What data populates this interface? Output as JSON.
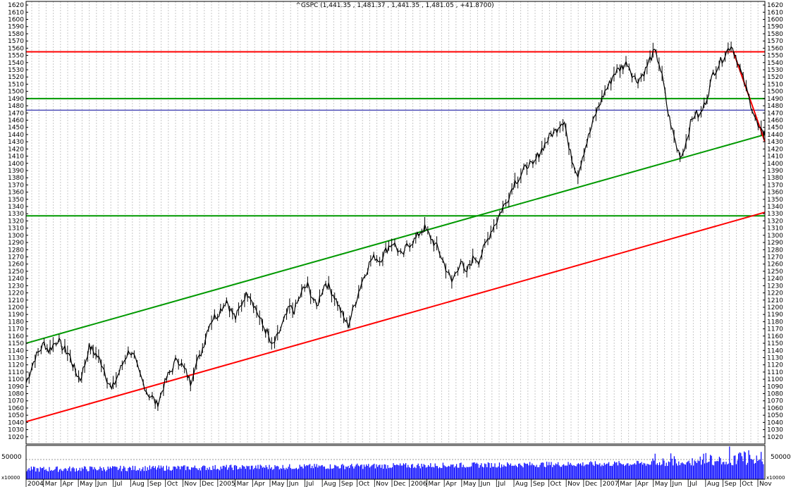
{
  "chart_data": {
    "type": "line",
    "title": "^GSPC (1,441.35 , 1,481.37 , 1,441.35 , 1,481.05 , +41.8700)",
    "ylim": [
      1010,
      1625
    ],
    "y_ticks": [
      1620,
      1610,
      1600,
      1590,
      1580,
      1570,
      1560,
      1550,
      1540,
      1530,
      1520,
      1510,
      1500,
      1490,
      1480,
      1470,
      1460,
      1450,
      1440,
      1430,
      1420,
      1410,
      1400,
      1390,
      1380,
      1370,
      1360,
      1350,
      1340,
      1330,
      1320,
      1310,
      1300,
      1290,
      1280,
      1270,
      1260,
      1250,
      1240,
      1230,
      1220,
      1210,
      1200,
      1190,
      1180,
      1170,
      1160,
      1150,
      1140,
      1130,
      1120,
      1110,
      1100,
      1090,
      1080,
      1070,
      1060,
      1050,
      1040,
      1030,
      1020
    ],
    "x_labels": [
      "2004",
      "Mar",
      "Apr",
      "May",
      "Jun",
      "Jul",
      "Aug",
      "Sep",
      "Oct",
      "Nov",
      "Dec",
      "2005",
      "Mar",
      "Apr",
      "May",
      "Jun",
      "Jul",
      "Aug",
      "Sep",
      "Oct",
      "Nov",
      "Dec",
      "2006",
      "Mar",
      "Apr",
      "May",
      "Jun",
      "Jul",
      "Aug",
      "Sep",
      "Oct",
      "Nov",
      "Dec",
      "2007",
      "Mar",
      "Apr",
      "May",
      "Jun",
      "Jul",
      "Aug",
      "Sep",
      "Oct",
      "Nov"
    ],
    "volume_label": "50000",
    "volume_scale_label": "x10000",
    "price_series": {
      "name": "^GSPC",
      "points": [
        [
          0,
          1095
        ],
        [
          4,
          1130
        ],
        [
          8,
          1150
        ],
        [
          10,
          1140
        ],
        [
          14,
          1155
        ],
        [
          16,
          1145
        ],
        [
          19,
          1135
        ],
        [
          22,
          1110
        ],
        [
          24,
          1100
        ],
        [
          26,
          1120
        ],
        [
          28,
          1145
        ],
        [
          31,
          1135
        ],
        [
          34,
          1120
        ],
        [
          36,
          1100
        ],
        [
          38,
          1085
        ],
        [
          40,
          1100
        ],
        [
          44,
          1130
        ],
        [
          46,
          1140
        ],
        [
          48,
          1130
        ],
        [
          50,
          1110
        ],
        [
          52,
          1095
        ],
        [
          54,
          1080
        ],
        [
          56,
          1075
        ],
        [
          58,
          1065
        ],
        [
          59,
          1070
        ],
        [
          61,
          1090
        ],
        [
          63,
          1105
        ],
        [
          65,
          1115
        ],
        [
          67,
          1130
        ],
        [
          69,
          1120
        ],
        [
          71,
          1110
        ],
        [
          73,
          1095
        ],
        [
          75,
          1120
        ],
        [
          77,
          1130
        ],
        [
          79,
          1150
        ],
        [
          81,
          1175
        ],
        [
          83,
          1185
        ],
        [
          85,
          1190
        ],
        [
          87,
          1200
        ],
        [
          89,
          1210
        ],
        [
          91,
          1195
        ],
        [
          93,
          1185
        ],
        [
          95,
          1200
        ],
        [
          97,
          1215
        ],
        [
          99,
          1220
        ],
        [
          101,
          1205
        ],
        [
          103,
          1190
        ],
        [
          105,
          1175
        ],
        [
          107,
          1165
        ],
        [
          109,
          1145
        ],
        [
          111,
          1155
        ],
        [
          113,
          1170
        ],
        [
          115,
          1185
        ],
        [
          117,
          1200
        ],
        [
          119,
          1195
        ],
        [
          121,
          1210
        ],
        [
          123,
          1225
        ],
        [
          125,
          1230
        ],
        [
          127,
          1215
        ],
        [
          129,
          1200
        ],
        [
          131,
          1220
        ],
        [
          133,
          1235
        ],
        [
          135,
          1225
        ],
        [
          137,
          1215
        ],
        [
          139,
          1200
        ],
        [
          141,
          1185
        ],
        [
          143,
          1175
        ],
        [
          145,
          1195
        ],
        [
          147,
          1215
        ],
        [
          149,
          1235
        ],
        [
          151,
          1250
        ],
        [
          153,
          1265
        ],
        [
          155,
          1270
        ],
        [
          157,
          1265
        ],
        [
          159,
          1275
        ],
        [
          161,
          1285
        ],
        [
          163,
          1290
        ],
        [
          165,
          1280
        ],
        [
          167,
          1270
        ],
        [
          169,
          1285
        ],
        [
          171,
          1290
        ],
        [
          173,
          1295
        ],
        [
          175,
          1305
        ],
        [
          177,
          1310
        ],
        [
          179,
          1300
        ],
        [
          181,
          1290
        ],
        [
          183,
          1280
        ],
        [
          185,
          1265
        ],
        [
          187,
          1250
        ],
        [
          189,
          1235
        ],
        [
          191,
          1250
        ],
        [
          193,
          1265
        ],
        [
          195,
          1245
        ],
        [
          197,
          1260
        ],
        [
          199,
          1270
        ],
        [
          201,
          1265
        ],
        [
          203,
          1280
        ],
        [
          205,
          1295
        ],
        [
          207,
          1310
        ],
        [
          209,
          1320
        ],
        [
          211,
          1335
        ],
        [
          213,
          1345
        ],
        [
          215,
          1360
        ],
        [
          217,
          1375
        ],
        [
          219,
          1380
        ],
        [
          221,
          1390
        ],
        [
          223,
          1400
        ],
        [
          225,
          1395
        ],
        [
          227,
          1410
        ],
        [
          229,
          1420
        ],
        [
          231,
          1430
        ],
        [
          233,
          1440
        ],
        [
          235,
          1445
        ],
        [
          237,
          1455
        ],
        [
          239,
          1460
        ],
        [
          241,
          1420
        ],
        [
          243,
          1400
        ],
        [
          245,
          1385
        ],
        [
          247,
          1410
        ],
        [
          249,
          1430
        ],
        [
          251,
          1450
        ],
        [
          253,
          1470
        ],
        [
          255,
          1485
        ],
        [
          257,
          1500
        ],
        [
          259,
          1510
        ],
        [
          261,
          1525
        ],
        [
          263,
          1530
        ],
        [
          265,
          1535
        ],
        [
          267,
          1540
        ],
        [
          269,
          1525
        ],
        [
          271,
          1515
        ],
        [
          273,
          1520
        ],
        [
          275,
          1530
        ],
        [
          277,
          1545
        ],
        [
          279,
          1555
        ],
        [
          281,
          1540
        ],
        [
          283,
          1510
        ],
        [
          285,
          1470
        ],
        [
          287,
          1445
        ],
        [
          289,
          1420
        ],
        [
          291,
          1410
        ],
        [
          293,
          1430
        ],
        [
          295,
          1455
        ],
        [
          297,
          1470
        ],
        [
          299,
          1465
        ],
        [
          301,
          1480
        ],
        [
          303,
          1500
        ],
        [
          305,
          1525
        ],
        [
          307,
          1535
        ],
        [
          309,
          1545
        ],
        [
          311,
          1555
        ],
        [
          313,
          1565
        ],
        [
          315,
          1550
        ],
        [
          317,
          1530
        ],
        [
          319,
          1510
        ],
        [
          321,
          1490
        ],
        [
          323,
          1470
        ],
        [
          325,
          1450
        ],
        [
          327,
          1440
        ],
        [
          328,
          1445
        ]
      ]
    },
    "line_series": [
      {
        "color": "#ff0000",
        "points": [
          [
            0,
            1555
          ],
          [
            328,
            1555
          ]
        ]
      },
      {
        "color": "#009900",
        "points": [
          [
            0,
            1490
          ],
          [
            328,
            1490
          ]
        ]
      },
      {
        "color": "#000099",
        "points": [
          [
            0,
            1474
          ],
          [
            328,
            1474
          ]
        ]
      },
      {
        "color": "#009900",
        "points": [
          [
            0,
            1327
          ],
          [
            328,
            1327
          ]
        ]
      },
      {
        "color": "#009900",
        "points": [
          [
            0,
            1150
          ],
          [
            328,
            1440
          ]
        ]
      },
      {
        "color": "#ff0000",
        "points": [
          [
            0,
            1041
          ],
          [
            328,
            1332
          ]
        ]
      },
      {
        "color": "#ff0000",
        "points": [
          [
            314,
            1555
          ],
          [
            328,
            1430
          ]
        ]
      }
    ]
  }
}
